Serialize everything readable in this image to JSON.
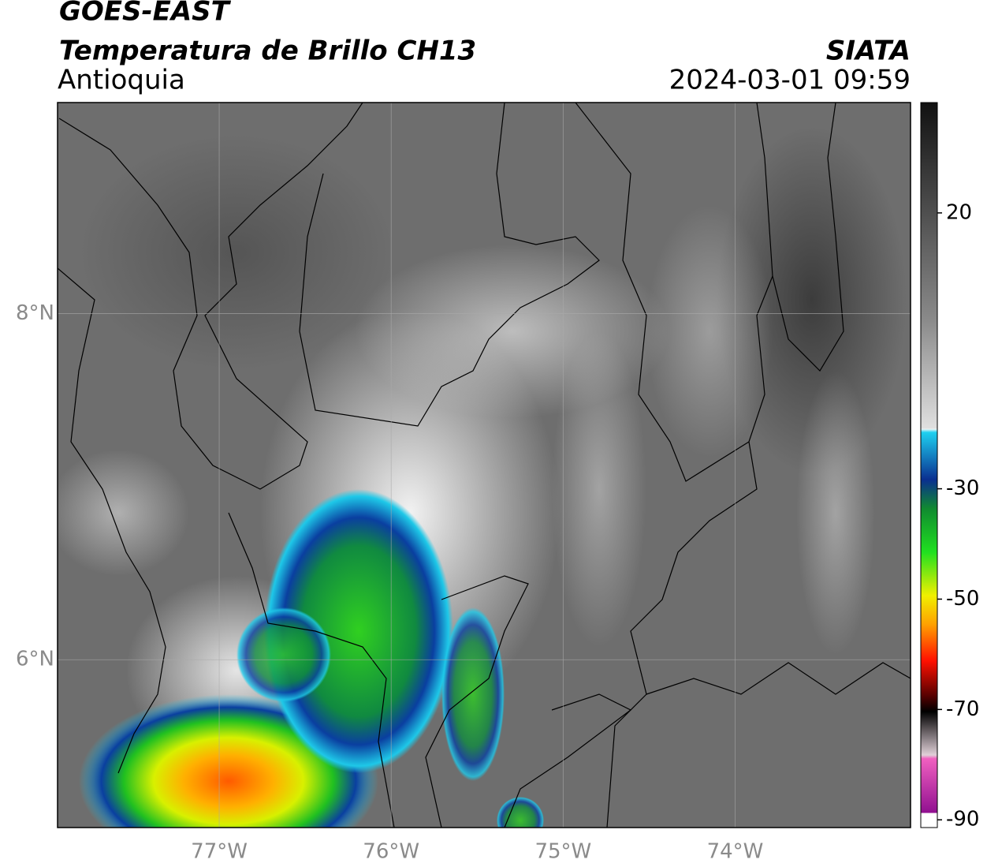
{
  "title": "GOES-EAST",
  "subtitle": "Temperatura de Brillo CH13",
  "region": "Antioquia",
  "source": "SIATA",
  "datetime": "2024-03-01 09:59",
  "map": {
    "lonlim": [
      -77.94,
      -72.98
    ],
    "latlim": [
      5.03,
      9.22
    ],
    "lon_ticks": [
      {
        "value": -77,
        "label": "77°W"
      },
      {
        "value": -76,
        "label": "76°W"
      },
      {
        "value": -75,
        "label": "75°W"
      },
      {
        "value": -74,
        "label": "74°W"
      }
    ],
    "lat_ticks": [
      {
        "value": 8,
        "label": "8°N"
      },
      {
        "value": 6,
        "label": "6°N"
      }
    ]
  },
  "colorbar": {
    "lim": [
      -91.4,
      40
    ],
    "ticks": [
      20,
      -30,
      -50,
      -70,
      -90
    ]
  }
}
